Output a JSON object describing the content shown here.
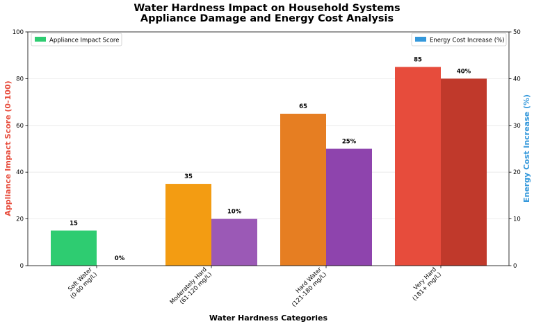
{
  "chart_data": {
    "type": "bar",
    "title": "Water Hardness Impact on Household Systems",
    "subtitle": "Appliance Damage and Energy Cost Analysis",
    "xlabel": "Water Hardness Categories",
    "ylabel_left": "Appliance Impact Score (0-100)",
    "ylabel_right": "Energy Cost Increase (%)",
    "ylim_left": [
      0,
      100
    ],
    "ylim_right": [
      0,
      50
    ],
    "yticks_left": [
      "0",
      "20",
      "40",
      "60",
      "80",
      "100"
    ],
    "yticks_right": [
      "0",
      "10",
      "20",
      "30",
      "40",
      "50"
    ],
    "grid": true,
    "categories": [
      [
        "Soft Water",
        "(0-60 mg/L)"
      ],
      [
        "Moderately Hard",
        "(61-120 mg/L)"
      ],
      [
        "Hard Water",
        "(121-180 mg/L)"
      ],
      [
        "Very Hard",
        "(181+ mg/L)"
      ]
    ],
    "series": [
      {
        "name": "Appliance Impact Score",
        "axis": "left",
        "values": [
          15,
          35,
          65,
          85
        ],
        "labels": [
          "15",
          "35",
          "65",
          "85"
        ],
        "colors": [
          "#2ecc71",
          "#f39c12",
          "#e67e22",
          "#e74c3c"
        ],
        "legend_color": "#2ecc71",
        "legend_position": "top-left"
      },
      {
        "name": "Energy Cost Increase (%)",
        "axis": "right",
        "values": [
          0,
          10,
          25,
          40
        ],
        "labels": [
          "0%",
          "10%",
          "25%",
          "40%"
        ],
        "colors": [
          "#9b59b6",
          "#9b59b6",
          "#8e44ad",
          "#c0392b"
        ],
        "legend_color": "#3498db",
        "legend_position": "top-right"
      }
    ],
    "colors": {
      "left_axis_label": "#e74c3c",
      "right_axis_label": "#3498db"
    }
  }
}
